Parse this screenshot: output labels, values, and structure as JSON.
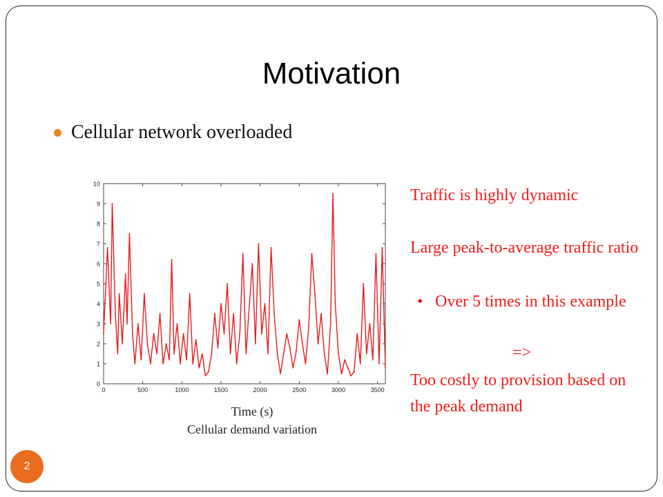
{
  "slide": {
    "title": "Motivation",
    "bullet": "Cellular network overloaded",
    "caption_axis": "Time (s)",
    "caption_title": "Cellular demand variation",
    "page_number": "2",
    "colors": {
      "text_accent": "#ee1c1c",
      "bullet": "#e8851f",
      "badge": "#ea6c1f"
    }
  },
  "side_notes": {
    "line1": "Traffic is highly dynamic",
    "line2": "Large peak-to-average traffic ratio",
    "bullet_symbol": "•",
    "bullet_text": "Over 5 times in this example",
    "arrow": "=>",
    "conclusion": "Too costly to provision based on the peak demand"
  },
  "chart_data": {
    "type": "line",
    "title": "",
    "xlabel": "",
    "ylabel": "",
    "xlim": [
      0,
      3600
    ],
    "ylim": [
      0,
      10
    ],
    "xticks": [
      0,
      500,
      1000,
      1500,
      2000,
      2500,
      3000,
      3500
    ],
    "yticks": [
      0,
      1,
      2,
      3,
      4,
      5,
      6,
      7,
      8,
      9,
      10
    ],
    "grid": false,
    "series": [
      {
        "color": "#e41a1c",
        "x": [
          0,
          50,
          90,
          110,
          150,
          180,
          200,
          240,
          280,
          300,
          330,
          370,
          400,
          440,
          480,
          520,
          560,
          600,
          640,
          680,
          720,
          760,
          800,
          840,
          870,
          900,
          940,
          980,
          1020,
          1060,
          1100,
          1140,
          1180,
          1220,
          1260,
          1300,
          1340,
          1380,
          1420,
          1460,
          1500,
          1540,
          1580,
          1620,
          1660,
          1700,
          1740,
          1780,
          1820,
          1860,
          1900,
          1940,
          1980,
          2020,
          2060,
          2100,
          2140,
          2180,
          2220,
          2260,
          2300,
          2340,
          2380,
          2420,
          2460,
          2500,
          2540,
          2580,
          2620,
          2660,
          2700,
          2740,
          2780,
          2820,
          2860,
          2900,
          2930,
          2960,
          3000,
          3040,
          3080,
          3120,
          3160,
          3200,
          3240,
          3280,
          3320,
          3360,
          3400,
          3440,
          3480,
          3520,
          3560,
          3600
        ],
        "values": [
          2.5,
          6.8,
          3.0,
          9.0,
          3.5,
          1.5,
          4.5,
          2.0,
          5.5,
          3.0,
          7.5,
          2.5,
          1.0,
          3.0,
          1.2,
          4.5,
          2.0,
          1.0,
          2.5,
          1.5,
          3.5,
          1.0,
          2.0,
          1.2,
          6.2,
          1.5,
          3.0,
          1.0,
          2.5,
          1.2,
          4.5,
          1.0,
          2.2,
          0.8,
          1.5,
          0.4,
          0.6,
          1.5,
          3.5,
          1.8,
          4.0,
          2.5,
          5.0,
          1.5,
          3.5,
          1.0,
          2.5,
          6.5,
          1.5,
          3.8,
          6.0,
          2.0,
          7.0,
          2.5,
          4.0,
          1.5,
          6.8,
          3.5,
          1.5,
          0.5,
          1.5,
          2.5,
          1.8,
          0.8,
          1.6,
          3.2,
          2.0,
          1.0,
          2.8,
          6.5,
          4.5,
          2.0,
          3.5,
          1.5,
          0.5,
          3.0,
          9.5,
          4.0,
          1.5,
          0.5,
          1.2,
          0.8,
          0.4,
          0.6,
          2.5,
          1.0,
          5.0,
          1.5,
          3.0,
          1.2,
          6.5,
          1.0,
          6.8,
          0.8
        ]
      }
    ]
  }
}
